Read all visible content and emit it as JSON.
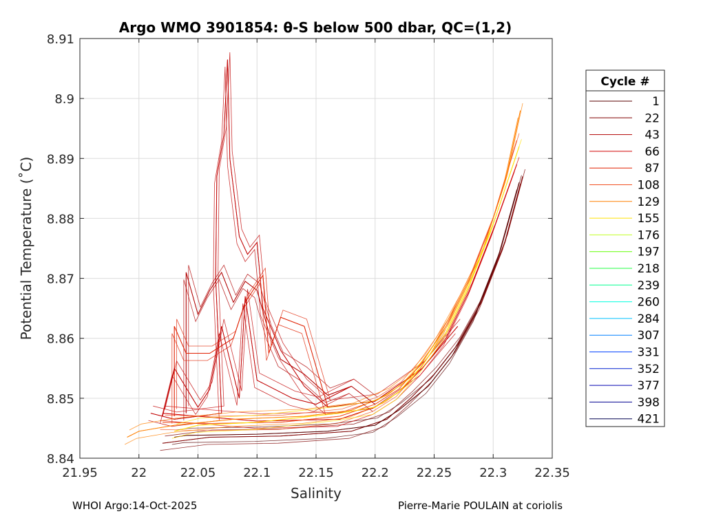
{
  "chart_data": {
    "type": "line",
    "title": "Argo WMO 3901854: θ-S below 500 dbar,  QC=(1,2)",
    "xlabel": "Salinity",
    "ylabel": "Potential Temperature (˚C)",
    "xlim": [
      21.95,
      22.35
    ],
    "ylim": [
      8.84,
      8.91
    ],
    "xticks": [
      "21.95",
      "22",
      "22.05",
      "22.1",
      "22.15",
      "22.2",
      "22.25",
      "22.3",
      "22.35"
    ],
    "yticks": [
      "8.84",
      "8.85",
      "8.86",
      "8.87",
      "8.88",
      "8.89",
      "8.9",
      "8.91"
    ],
    "grid": true,
    "legend": {
      "title": "Cycle #",
      "placement": "right-outside",
      "entries": [
        {
          "label": "1",
          "color": "#5a0000"
        },
        {
          "label": "22",
          "color": "#800000"
        },
        {
          "label": "43",
          "color": "#b00000"
        },
        {
          "label": "66",
          "color": "#d00000"
        },
        {
          "label": "87",
          "color": "#e02000"
        },
        {
          "label": "108",
          "color": "#f05020"
        },
        {
          "label": "129",
          "color": "#ff8000"
        },
        {
          "label": "155",
          "color": "#ffe000"
        },
        {
          "label": "176",
          "color": "#c0ff20"
        },
        {
          "label": "197",
          "color": "#60ff00"
        },
        {
          "label": "218",
          "color": "#20ff40"
        },
        {
          "label": "239",
          "color": "#00ff90"
        },
        {
          "label": "260",
          "color": "#00ffe0"
        },
        {
          "label": "284",
          "color": "#00c0ff"
        },
        {
          "label": "307",
          "color": "#0080ff"
        },
        {
          "label": "331",
          "color": "#0040ff"
        },
        {
          "label": "352",
          "color": "#0020d0"
        },
        {
          "label": "377",
          "color": "#0000b0"
        },
        {
          "label": "398",
          "color": "#000090"
        },
        {
          "label": "421",
          "color": "#000050"
        }
      ]
    },
    "series": [
      {
        "name": "profile-spike",
        "color": "#c00000",
        "points": [
          [
            22.27,
            8.862
          ],
          [
            22.24,
            8.855
          ],
          [
            22.2,
            8.8495
          ],
          [
            22.16,
            8.8485
          ],
          [
            22.14,
            8.852
          ],
          [
            22.12,
            8.858
          ],
          [
            22.105,
            8.865
          ],
          [
            22.1,
            8.876
          ],
          [
            22.092,
            8.874
          ],
          [
            22.085,
            8.877
          ],
          [
            22.077,
            8.89
          ],
          [
            22.075,
            8.9065
          ],
          [
            22.072,
            8.894
          ],
          [
            22.066,
            8.887
          ],
          [
            22.065,
            8.87
          ],
          [
            22.07,
            8.8475
          ],
          [
            22.03,
            8.8465
          ],
          [
            22.01,
            8.8475
          ]
        ]
      },
      {
        "name": "profile-a",
        "color": "#800000",
        "points": [
          [
            22.325,
            8.887
          ],
          [
            22.31,
            8.876
          ],
          [
            22.29,
            8.866
          ],
          [
            22.27,
            8.859
          ],
          [
            22.25,
            8.854
          ],
          [
            22.23,
            8.85
          ],
          [
            22.21,
            8.8465
          ],
          [
            22.18,
            8.8445
          ],
          [
            22.12,
            8.8437
          ],
          [
            22.06,
            8.8435
          ],
          [
            22.02,
            8.8425
          ]
        ]
      },
      {
        "name": "profile-b",
        "color": "#5a0000",
        "points": [
          [
            22.322,
            8.886
          ],
          [
            22.305,
            8.874
          ],
          [
            22.285,
            8.864
          ],
          [
            22.265,
            8.857
          ],
          [
            22.245,
            8.852
          ],
          [
            22.22,
            8.848
          ],
          [
            22.2,
            8.8455
          ],
          [
            22.16,
            8.8445
          ],
          [
            22.1,
            8.844
          ],
          [
            22.04,
            8.8438
          ],
          [
            22.03,
            8.8435
          ]
        ]
      },
      {
        "name": "profile-c",
        "color": "#d00000",
        "points": [
          [
            22.32,
            8.889
          ],
          [
            22.3,
            8.878
          ],
          [
            22.28,
            8.868
          ],
          [
            22.26,
            8.86
          ],
          [
            22.24,
            8.855
          ],
          [
            22.22,
            8.851
          ],
          [
            22.2,
            8.8485
          ],
          [
            22.17,
            8.8465
          ],
          [
            22.1,
            8.8462
          ],
          [
            22.05,
            8.847
          ],
          [
            22.02,
            8.8475
          ]
        ]
      },
      {
        "name": "profile-d",
        "color": "#f05020",
        "points": [
          [
            22.32,
            8.893
          ],
          [
            22.3,
            8.88
          ],
          [
            22.28,
            8.87
          ],
          [
            22.26,
            8.862
          ],
          [
            22.24,
            8.856
          ],
          [
            22.22,
            8.8515
          ],
          [
            22.2,
            8.849
          ],
          [
            22.17,
            8.847
          ],
          [
            22.12,
            8.846
          ],
          [
            22.06,
            8.8458
          ],
          [
            22.02,
            8.846
          ]
        ]
      },
      {
        "name": "profile-e",
        "color": "#ff8000",
        "points": [
          [
            22.323,
            8.898
          ],
          [
            22.31,
            8.886
          ],
          [
            22.29,
            8.874
          ],
          [
            22.27,
            8.866
          ],
          [
            22.25,
            8.859
          ],
          [
            22.23,
            8.8535
          ],
          [
            22.21,
            8.8505
          ],
          [
            22.18,
            8.848
          ],
          [
            22.14,
            8.847
          ],
          [
            22.08,
            8.8465
          ],
          [
            22.03,
            8.8455
          ],
          [
            22.0,
            8.8445
          ],
          [
            21.99,
            8.8435
          ]
        ]
      },
      {
        "name": "profile-f",
        "color": "#ffe000",
        "points": [
          [
            22.322,
            8.892
          ],
          [
            22.3,
            8.879
          ],
          [
            22.28,
            8.869
          ],
          [
            22.26,
            8.861
          ],
          [
            22.24,
            8.8555
          ],
          [
            22.22,
            8.851
          ],
          [
            22.2,
            8.8485
          ],
          [
            22.17,
            8.8475
          ],
          [
            22.1,
            8.846
          ],
          [
            22.05,
            8.8455
          ],
          [
            22.03,
            8.8445
          ]
        ]
      },
      {
        "name": "profile-g",
        "color": "#b00000",
        "points": [
          [
            22.2,
            8.849
          ],
          [
            22.18,
            8.852
          ],
          [
            22.16,
            8.8505
          ],
          [
            22.14,
            8.854
          ],
          [
            22.12,
            8.8565
          ],
          [
            22.11,
            8.861
          ],
          [
            22.1,
            8.868
          ],
          [
            22.09,
            8.8695
          ],
          [
            22.08,
            8.866
          ],
          [
            22.07,
            8.871
          ],
          [
            22.06,
            8.868
          ],
          [
            22.05,
            8.864
          ],
          [
            22.04,
            8.871
          ],
          [
            22.04,
            8.8475
          ]
        ]
      },
      {
        "name": "profile-h",
        "color": "#e02000",
        "points": [
          [
            22.16,
            8.8485
          ],
          [
            22.14,
            8.862
          ],
          [
            22.12,
            8.8635
          ],
          [
            22.11,
            8.8575
          ],
          [
            22.105,
            8.8705
          ],
          [
            22.09,
            8.866
          ],
          [
            22.08,
            8.86
          ],
          [
            22.06,
            8.8575
          ],
          [
            22.04,
            8.8575
          ],
          [
            22.03,
            8.862
          ],
          [
            22.03,
            8.847
          ]
        ]
      },
      {
        "name": "profile-i",
        "color": "#c00000",
        "points": [
          [
            22.18,
            8.852
          ],
          [
            22.15,
            8.849
          ],
          [
            22.13,
            8.85
          ],
          [
            22.1,
            8.853
          ],
          [
            22.09,
            8.867
          ],
          [
            22.085,
            8.85
          ],
          [
            22.07,
            8.862
          ],
          [
            22.06,
            8.8515
          ],
          [
            22.05,
            8.8485
          ],
          [
            22.03,
            8.855
          ],
          [
            22.02,
            8.847
          ]
        ]
      }
    ]
  },
  "footer": {
    "left": "WHOI Argo:14-Oct-2025",
    "right": "Pierre-Marie POULAIN at coriolis"
  }
}
